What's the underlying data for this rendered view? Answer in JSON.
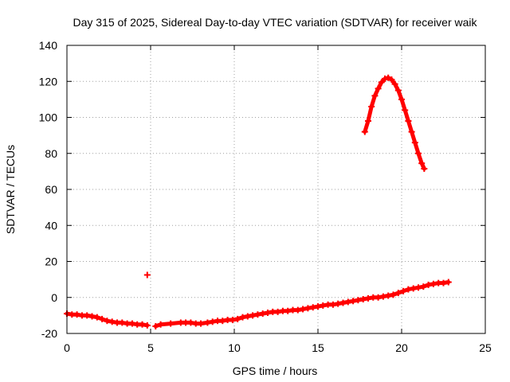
{
  "chart_data": {
    "type": "scatter",
    "title": "Day 315 of 2025, Sidereal Day-to-day VTEC variation (SDTVAR) for receiver waik",
    "xlabel": "GPS time / hours",
    "ylabel": "SDTVAR / TECUs",
    "xlim": [
      0,
      25
    ],
    "ylim": [
      -20,
      140
    ],
    "xticks": [
      0,
      5,
      10,
      15,
      20,
      25
    ],
    "yticks": [
      -20,
      0,
      20,
      40,
      60,
      80,
      100,
      120,
      140
    ],
    "grid": true,
    "marker": "+",
    "series": [
      {
        "name": "SDTVAR",
        "color": "#ff0000",
        "points": [
          [
            0.0,
            -9
          ],
          [
            0.3,
            -9.5
          ],
          [
            0.6,
            -9.5
          ],
          [
            0.9,
            -10
          ],
          [
            1.2,
            -10
          ],
          [
            1.5,
            -10.5
          ],
          [
            1.8,
            -11
          ],
          [
            2.1,
            -12
          ],
          [
            2.4,
            -13
          ],
          [
            2.7,
            -13.5
          ],
          [
            3.0,
            -14
          ],
          [
            3.3,
            -14
          ],
          [
            3.6,
            -14.5
          ],
          [
            3.9,
            -14.5
          ],
          [
            4.2,
            -15
          ],
          [
            4.5,
            -15
          ],
          [
            4.8,
            -15.5
          ],
          [
            4.8,
            12.5
          ],
          [
            5.3,
            -16
          ],
          [
            5.6,
            -15
          ],
          [
            6.2,
            -14.5
          ],
          [
            6.8,
            -14
          ],
          [
            7.1,
            -14
          ],
          [
            7.4,
            -14
          ],
          [
            7.7,
            -14.5
          ],
          [
            8.0,
            -14.5
          ],
          [
            8.4,
            -14
          ],
          [
            8.7,
            -13.5
          ],
          [
            9.0,
            -13
          ],
          [
            9.3,
            -13
          ],
          [
            9.6,
            -12.5
          ],
          [
            9.9,
            -12.5
          ],
          [
            10.2,
            -12
          ],
          [
            10.5,
            -11
          ],
          [
            10.8,
            -10.5
          ],
          [
            11.1,
            -10
          ],
          [
            11.4,
            -9.5
          ],
          [
            11.7,
            -9
          ],
          [
            12.0,
            -8.5
          ],
          [
            12.3,
            -8
          ],
          [
            12.6,
            -8
          ],
          [
            12.9,
            -7.5
          ],
          [
            13.2,
            -7.5
          ],
          [
            13.5,
            -7
          ],
          [
            13.8,
            -7
          ],
          [
            14.1,
            -6.5
          ],
          [
            14.4,
            -6
          ],
          [
            14.7,
            -5.5
          ],
          [
            15.0,
            -5
          ],
          [
            15.3,
            -4.5
          ],
          [
            15.6,
            -4
          ],
          [
            15.9,
            -4
          ],
          [
            16.2,
            -3.5
          ],
          [
            16.5,
            -3
          ],
          [
            16.8,
            -2.5
          ],
          [
            17.1,
            -2
          ],
          [
            17.4,
            -1.5
          ],
          [
            17.7,
            -1
          ],
          [
            18.0,
            -0.5
          ],
          [
            18.3,
            0
          ],
          [
            18.6,
            0
          ],
          [
            18.9,
            0.5
          ],
          [
            19.2,
            1
          ],
          [
            19.5,
            1.5
          ],
          [
            19.8,
            2.5
          ],
          [
            20.1,
            3.5
          ],
          [
            20.4,
            4.5
          ],
          [
            20.7,
            5
          ],
          [
            21.0,
            5.5
          ],
          [
            21.3,
            6
          ],
          [
            21.6,
            7
          ],
          [
            21.9,
            7.5
          ],
          [
            22.2,
            8
          ],
          [
            22.5,
            8
          ],
          [
            22.8,
            8.5
          ],
          [
            17.8,
            92
          ],
          [
            18.0,
            98
          ],
          [
            18.2,
            106
          ],
          [
            18.4,
            112
          ],
          [
            18.6,
            116
          ],
          [
            18.8,
            119.5
          ],
          [
            19.0,
            121.5
          ],
          [
            19.2,
            122
          ],
          [
            19.4,
            121
          ],
          [
            19.6,
            118.5
          ],
          [
            19.8,
            115
          ],
          [
            20.0,
            110
          ],
          [
            20.2,
            104
          ],
          [
            20.4,
            98
          ],
          [
            20.6,
            92
          ],
          [
            20.8,
            86
          ],
          [
            21.0,
            80
          ],
          [
            21.2,
            74.5
          ],
          [
            21.35,
            71.5
          ]
        ]
      }
    ]
  }
}
